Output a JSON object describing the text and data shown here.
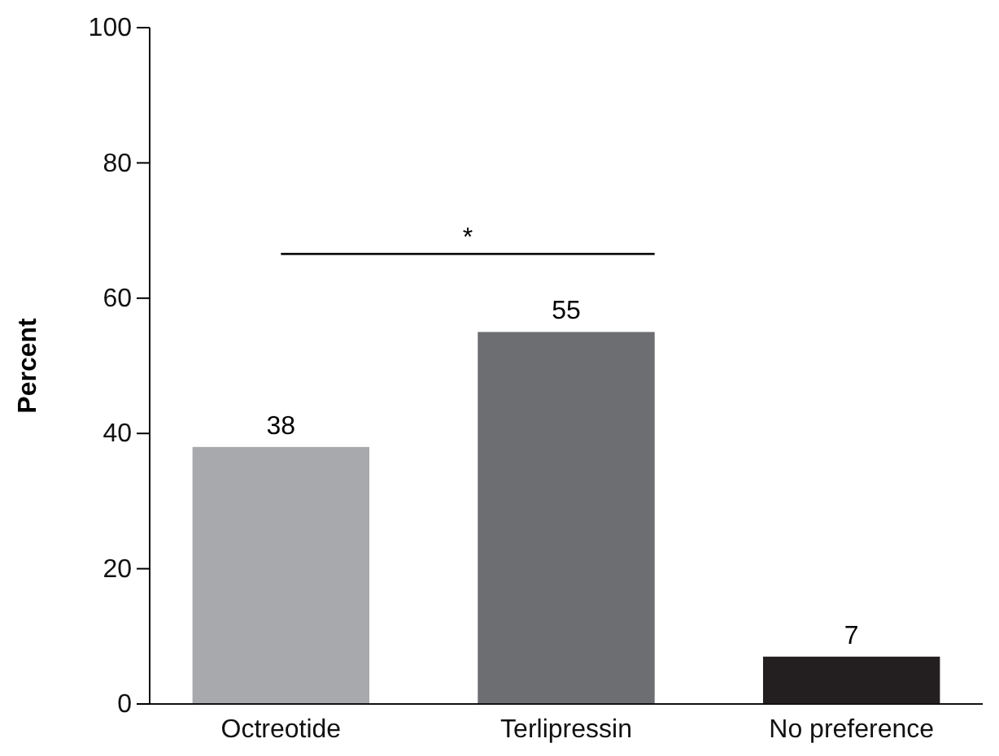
{
  "chart_data": {
    "type": "bar",
    "ylabel": "Percent",
    "categories": [
      "Octreotide",
      "Terlipressin",
      "No preference"
    ],
    "values": [
      38,
      55,
      7
    ],
    "colors": [
      "#a7a9ac",
      "#6d6e71",
      "#231f20"
    ],
    "ylim": [
      0,
      100
    ],
    "yticks": [
      0,
      20,
      40,
      60,
      80,
      100
    ],
    "data_labels": true,
    "annotations": [
      "*"
    ]
  }
}
